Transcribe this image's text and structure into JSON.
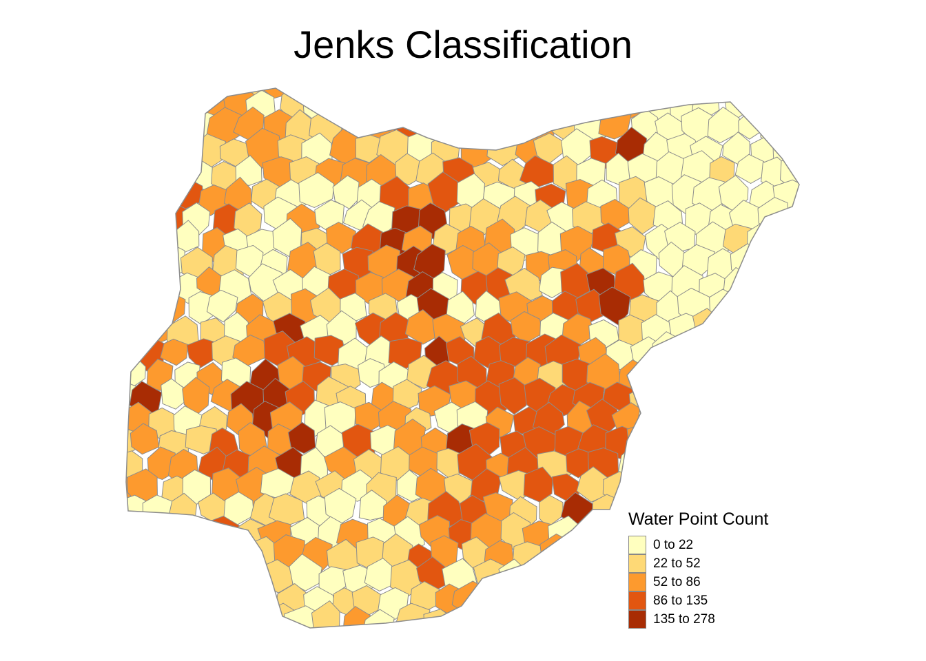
{
  "title": "Jenks Classification",
  "legend": {
    "title": "Water Point Count",
    "classes": [
      {
        "label": "0 to 22",
        "color": "#ffffbf"
      },
      {
        "label": "22 to 52",
        "color": "#fed976"
      },
      {
        "label": "52 to 86",
        "color": "#fd9a2e"
      },
      {
        "label": "86 to 135",
        "color": "#e25610"
      },
      {
        "label": "135 to 278",
        "color": "#a82c04"
      }
    ]
  },
  "map": {
    "region": "Nigeria",
    "unit": "LGA",
    "border_color": "#8c8c8c"
  }
}
